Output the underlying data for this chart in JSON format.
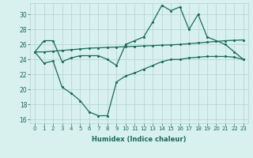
{
  "xlabel": "Humidex (Indice chaleur)",
  "ylabel": "",
  "x": [
    0,
    1,
    2,
    3,
    4,
    5,
    6,
    7,
    8,
    9,
    10,
    11,
    12,
    13,
    14,
    15,
    16,
    17,
    18,
    19,
    20,
    21,
    22,
    23
  ],
  "line1": [
    25.0,
    26.5,
    26.5,
    23.7,
    24.2,
    24.5,
    24.5,
    24.5,
    24.0,
    23.2,
    26.0,
    26.5,
    27.0,
    29.0,
    31.2,
    30.5,
    31.0,
    28.0,
    30.0,
    27.0,
    26.5,
    26.0,
    25.0,
    24.0
  ],
  "line2": [
    25.0,
    23.5,
    23.8,
    20.3,
    19.5,
    18.5,
    17.0,
    16.5,
    16.5,
    21.0,
    21.8,
    22.2,
    22.7,
    23.2,
    23.7,
    24.0,
    24.0,
    24.2,
    24.3,
    24.4,
    24.4,
    24.4,
    24.3,
    24.0
  ],
  "line3": [
    25.0,
    25.0,
    25.1,
    25.2,
    25.3,
    25.4,
    25.5,
    25.55,
    25.6,
    25.65,
    25.7,
    25.75,
    25.8,
    25.85,
    25.9,
    25.95,
    26.0,
    26.1,
    26.2,
    26.3,
    26.4,
    26.5,
    26.55,
    26.6
  ],
  "ylim": [
    15.5,
    31.5
  ],
  "yticks": [
    16,
    18,
    20,
    22,
    24,
    26,
    28,
    30
  ],
  "xticks": [
    0,
    1,
    2,
    3,
    4,
    5,
    6,
    7,
    8,
    9,
    10,
    11,
    12,
    13,
    14,
    15,
    16,
    17,
    18,
    19,
    20,
    21,
    22,
    23
  ],
  "line_color": "#1a6b5a",
  "bg_color": "#d8f0ee",
  "grid_color": "#b0d4d0"
}
